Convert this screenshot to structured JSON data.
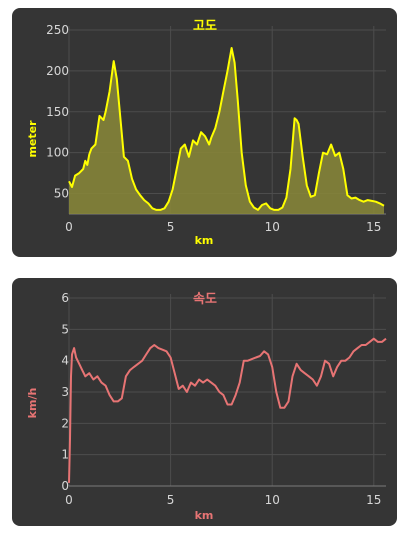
{
  "colors": {
    "panel_bg": "#353535",
    "grid": "#4d4d4d",
    "tick_text": "#d6d6d6",
    "altitude_accent": "#ffff00",
    "altitude_line": "#ffff00",
    "altitude_fill": "#8a8838",
    "speed_accent": "#e77474",
    "speed_line": "#e77474"
  },
  "chart_data": [
    {
      "type": "area",
      "title": "고도",
      "xlabel": "km",
      "ylabel": "meter",
      "xlim": [
        0,
        15.6
      ],
      "ylim": [
        25,
        250
      ],
      "xticks": [
        "0",
        "5",
        "10",
        "15"
      ],
      "yticks": [
        "50",
        "100",
        "150",
        "200",
        "250"
      ],
      "grid": true,
      "series": [
        {
          "x": [
            0,
            0.15,
            0.3,
            0.5,
            0.7,
            0.8,
            0.9,
            1.0,
            1.1,
            1.3,
            1.5,
            1.7,
            1.8,
            2.0,
            2.2,
            2.35,
            2.5,
            2.7,
            2.9,
            3.1,
            3.3,
            3.5,
            3.7,
            3.9,
            4.1,
            4.3,
            4.5,
            4.7,
            4.9,
            5.1,
            5.3,
            5.5,
            5.7,
            5.9,
            6.1,
            6.3,
            6.5,
            6.7,
            6.9,
            7.0,
            7.2,
            7.4,
            7.6,
            7.8,
            8.0,
            8.15,
            8.3,
            8.5,
            8.7,
            8.9,
            9.1,
            9.3,
            9.5,
            9.7,
            9.9,
            10.1,
            10.3,
            10.5,
            10.7,
            10.9,
            11.0,
            11.1,
            11.2,
            11.3,
            11.5,
            11.7,
            11.9,
            12.1,
            12.3,
            12.5,
            12.7,
            12.9,
            13.1,
            13.3,
            13.5,
            13.7,
            13.9,
            14.1,
            14.3,
            14.5,
            14.7,
            14.9,
            15.1,
            15.3,
            15.5
          ],
          "y": [
            65,
            58,
            72,
            75,
            80,
            90,
            85,
            98,
            105,
            110,
            145,
            140,
            150,
            175,
            212,
            190,
            150,
            95,
            90,
            68,
            55,
            48,
            42,
            38,
            32,
            30,
            30,
            32,
            40,
            55,
            80,
            105,
            110,
            95,
            115,
            110,
            125,
            120,
            110,
            118,
            130,
            150,
            175,
            200,
            228,
            210,
            165,
            100,
            60,
            40,
            33,
            30,
            36,
            38,
            32,
            30,
            30,
            33,
            45,
            80,
            110,
            142,
            140,
            135,
            95,
            60,
            46,
            48,
            75,
            100,
            98,
            110,
            96,
            100,
            80,
            48,
            44,
            45,
            42,
            40,
            42,
            41,
            40,
            38,
            35
          ]
        }
      ]
    },
    {
      "type": "line",
      "title": "속도",
      "xlabel": "km",
      "ylabel": "km/h",
      "xlim": [
        0,
        15.6
      ],
      "ylim": [
        0,
        6
      ],
      "xticks": [
        "0",
        "5",
        "10",
        "15"
      ],
      "yticks": [
        "0",
        "1",
        "2",
        "3",
        "4",
        "5",
        "6"
      ],
      "grid": true,
      "series": [
        {
          "x": [
            0,
            0.05,
            0.1,
            0.15,
            0.25,
            0.35,
            0.5,
            0.65,
            0.8,
            1.0,
            1.2,
            1.4,
            1.6,
            1.8,
            2.0,
            2.2,
            2.4,
            2.6,
            2.8,
            3.0,
            3.2,
            3.4,
            3.6,
            3.8,
            4.0,
            4.2,
            4.4,
            4.6,
            4.8,
            5.0,
            5.2,
            5.4,
            5.6,
            5.8,
            6.0,
            6.2,
            6.4,
            6.6,
            6.8,
            7.0,
            7.2,
            7.4,
            7.6,
            7.8,
            8.0,
            8.2,
            8.4,
            8.6,
            8.8,
            9.0,
            9.2,
            9.4,
            9.6,
            9.8,
            10.0,
            10.2,
            10.4,
            10.6,
            10.8,
            11.0,
            11.2,
            11.4,
            11.6,
            11.8,
            12.0,
            12.2,
            12.4,
            12.6,
            12.8,
            13.0,
            13.2,
            13.4,
            13.6,
            13.8,
            14.0,
            14.2,
            14.4,
            14.6,
            14.8,
            15.0,
            15.2,
            15.4,
            15.6
          ],
          "y": [
            0.1,
            1.5,
            3.5,
            4.2,
            4.4,
            4.1,
            3.9,
            3.7,
            3.5,
            3.6,
            3.4,
            3.5,
            3.3,
            3.2,
            2.9,
            2.7,
            2.7,
            2.8,
            3.5,
            3.7,
            3.8,
            3.9,
            4.0,
            4.2,
            4.4,
            4.5,
            4.4,
            4.35,
            4.3,
            4.1,
            3.6,
            3.1,
            3.2,
            3.0,
            3.3,
            3.2,
            3.4,
            3.3,
            3.4,
            3.3,
            3.2,
            3.0,
            2.9,
            2.6,
            2.6,
            2.9,
            3.3,
            4.0,
            4.0,
            4.05,
            4.1,
            4.15,
            4.3,
            4.2,
            3.8,
            3.0,
            2.5,
            2.5,
            2.7,
            3.5,
            3.9,
            3.7,
            3.6,
            3.5,
            3.4,
            3.2,
            3.5,
            4.0,
            3.9,
            3.5,
            3.8,
            4.0,
            4.0,
            4.1,
            4.3,
            4.4,
            4.5,
            4.5,
            4.6,
            4.7,
            4.6,
            4.6,
            4.7
          ]
        }
      ]
    }
  ]
}
